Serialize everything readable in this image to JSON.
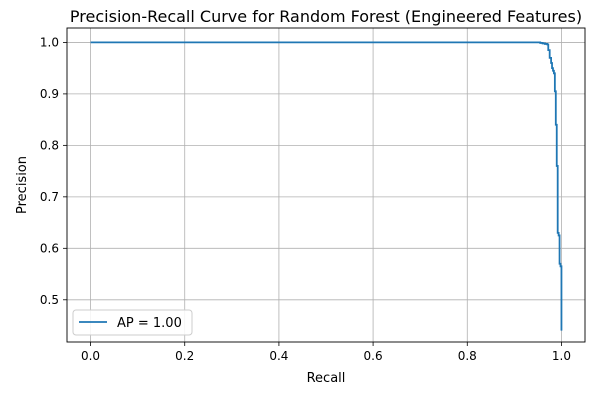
{
  "chart_data": {
    "type": "line",
    "title": "Precision-Recall Curve for Random Forest (Engineered Features)",
    "xlabel": "Recall",
    "ylabel": "Precision",
    "xlim": [
      -0.05,
      1.05
    ],
    "ylim": [
      0.418,
      1.028
    ],
    "xticks": [
      0.0,
      0.2,
      0.4,
      0.6,
      0.8,
      1.0
    ],
    "xtick_labels": [
      "0.0",
      "0.2",
      "0.4",
      "0.6",
      "0.8",
      "1.0"
    ],
    "yticks": [
      0.5,
      0.6,
      0.7,
      0.8,
      0.9,
      1.0
    ],
    "ytick_labels": [
      "0.5",
      "0.6",
      "0.7",
      "0.8",
      "0.9",
      "1.0"
    ],
    "grid": true,
    "legend_position": "lower-left",
    "series": [
      {
        "name": "AP = 1.00",
        "color": "#1f77b4",
        "step": true,
        "x": [
          0.0,
          0.95,
          0.955,
          0.96,
          0.965,
          0.97,
          0.972,
          0.975,
          0.978,
          0.98,
          0.982,
          0.984,
          0.986,
          0.988,
          0.99,
          0.992,
          0.994,
          0.996,
          0.998,
          1.0
        ],
        "y": [
          1.0,
          1.0,
          0.999,
          0.998,
          0.997,
          0.996,
          0.985,
          0.97,
          0.96,
          0.95,
          0.945,
          0.94,
          0.905,
          0.84,
          0.76,
          0.63,
          0.625,
          0.57,
          0.565,
          0.44
        ]
      }
    ]
  }
}
